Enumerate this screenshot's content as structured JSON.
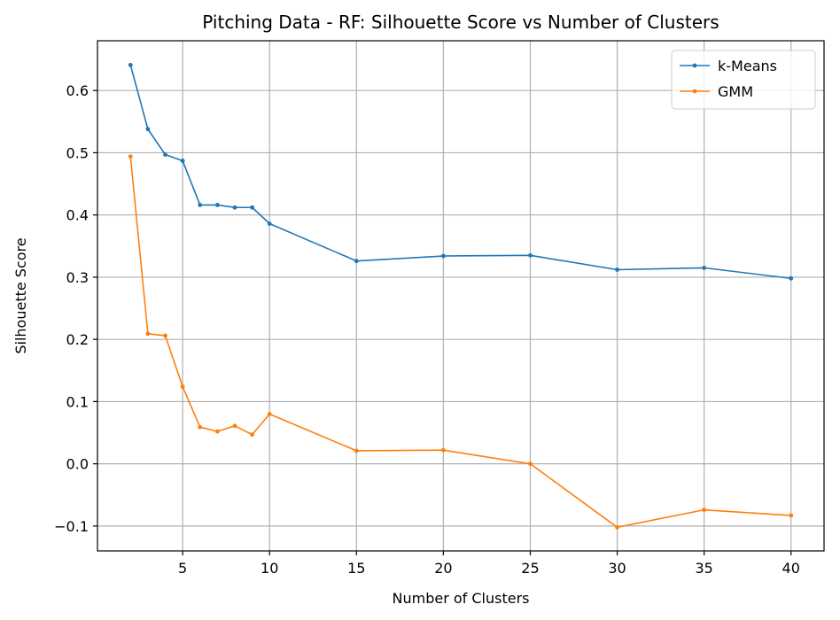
{
  "chart_data": {
    "type": "line",
    "title": "Pitching Data - RF: Silhouette Score vs Number of Clusters",
    "xlabel": "Number of Clusters",
    "ylabel": "Silhouette Score",
    "x": [
      2,
      3,
      4,
      5,
      6,
      7,
      8,
      9,
      10,
      15,
      20,
      25,
      30,
      35,
      40
    ],
    "xlim": [
      0.1,
      41.9
    ],
    "ylim": [
      -0.14,
      0.68
    ],
    "xticks": [
      5,
      10,
      15,
      20,
      25,
      30,
      35,
      40
    ],
    "xtick_labels": [
      "5",
      "10",
      "15",
      "20",
      "25",
      "30",
      "35",
      "40"
    ],
    "yticks": [
      -0.1,
      0.0,
      0.1,
      0.2,
      0.3,
      0.4,
      0.5,
      0.6
    ],
    "ytick_labels": [
      "−0.1",
      "0.0",
      "0.1",
      "0.2",
      "0.3",
      "0.4",
      "0.5",
      "0.6"
    ],
    "grid": true,
    "legend_position": "top-right",
    "series": [
      {
        "name": "k-Means",
        "color": "#1f77b4",
        "values": [
          0.641,
          0.538,
          0.497,
          0.487,
          0.416,
          0.416,
          0.412,
          0.412,
          0.386,
          0.326,
          0.334,
          0.335,
          0.312,
          0.315,
          0.298
        ]
      },
      {
        "name": "GMM",
        "color": "#ff7f0e",
        "values": [
          0.494,
          0.209,
          0.206,
          0.124,
          0.059,
          0.052,
          0.061,
          0.047,
          0.08,
          0.021,
          0.022,
          0.0,
          -0.102,
          -0.074,
          -0.083
        ]
      }
    ]
  }
}
